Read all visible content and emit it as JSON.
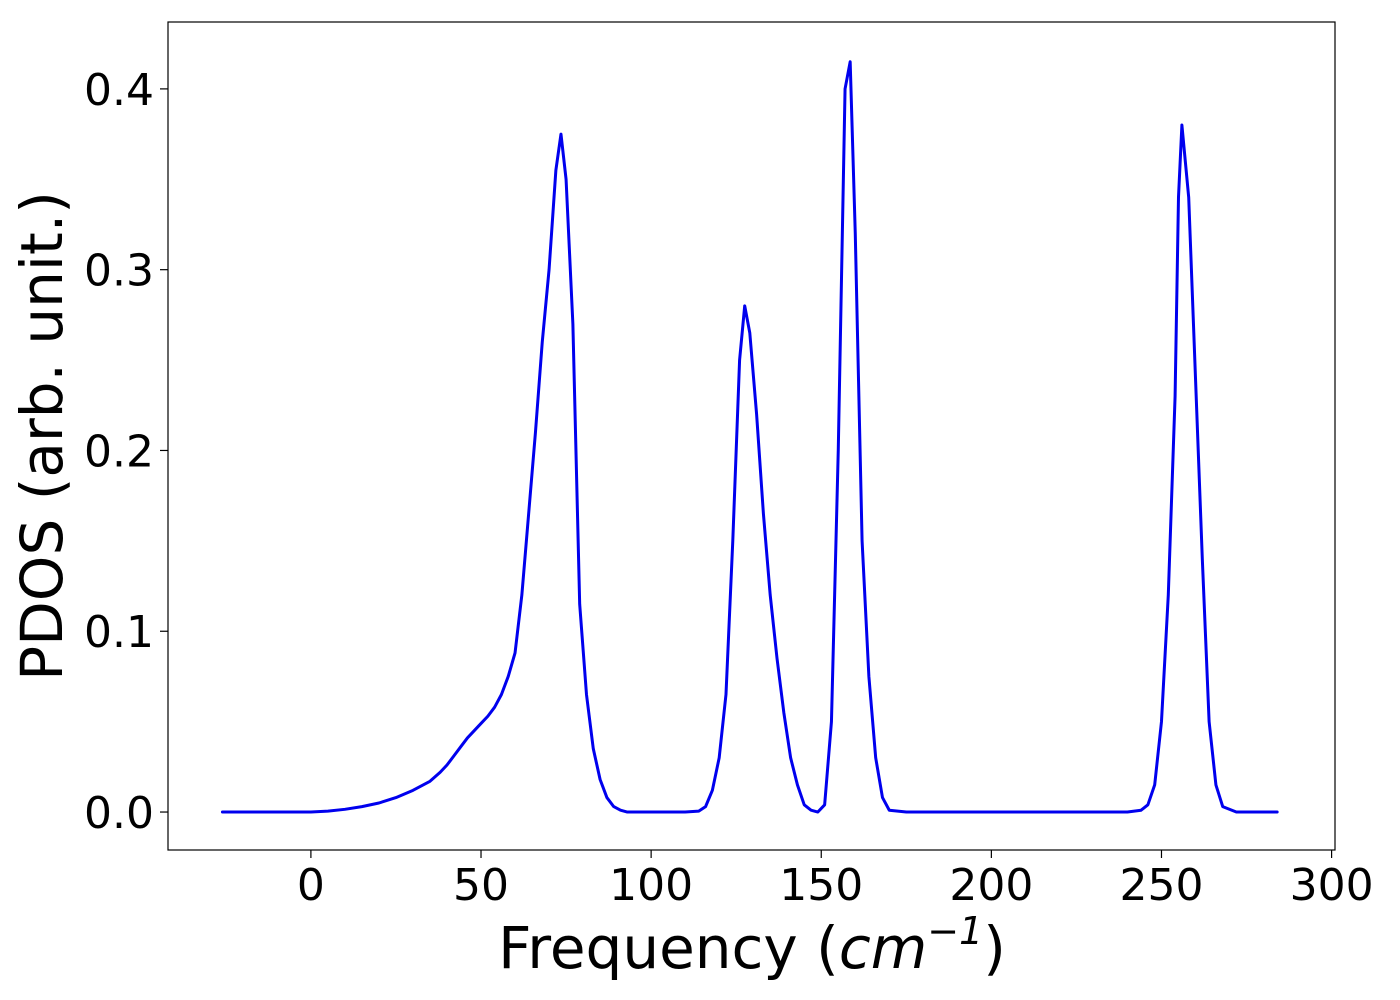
{
  "chart_data": {
    "type": "line",
    "title": "",
    "xlabel_prefix": "Frequency (",
    "xlabel_math": "cm",
    "xlabel_sup": "−1",
    "xlabel_suffix": ")",
    "ylabel": "PDOS (arb. unit.)",
    "xlim": [
      -42,
      301
    ],
    "ylim": [
      -0.021,
      0.437
    ],
    "xticks": [
      0,
      50,
      100,
      150,
      200,
      250,
      300
    ],
    "xtick_labels": [
      "0",
      "50",
      "100",
      "150",
      "200",
      "250",
      "300"
    ],
    "yticks": [
      0.0,
      0.1,
      0.2,
      0.3,
      0.4
    ],
    "ytick_labels": [
      "0.0",
      "0.1",
      "0.2",
      "0.3",
      "0.4"
    ],
    "grid": false,
    "legend": "none",
    "series": [
      {
        "color": "#0000ee",
        "x": [
          -26,
          -20,
          -10,
          0,
          5,
          10,
          15,
          20,
          25,
          30,
          35,
          38,
          40,
          42,
          44,
          46,
          48,
          50,
          52,
          54,
          56,
          58,
          60,
          62,
          64,
          66,
          68,
          70,
          72,
          73.5,
          75,
          77,
          79,
          81,
          83,
          85,
          87,
          89,
          91,
          93,
          95,
          100,
          105,
          110,
          114,
          116,
          118,
          120,
          122,
          124,
          126,
          127.5,
          129,
          131,
          133,
          135,
          137,
          139,
          141,
          143,
          145,
          147,
          149,
          151,
          153,
          155,
          157,
          158.5,
          160,
          162,
          164,
          166,
          168,
          170,
          175,
          200,
          225,
          240,
          244,
          246,
          248,
          250,
          252,
          254,
          255,
          256,
          258,
          260,
          262,
          264,
          266,
          268,
          272,
          284
        ],
        "y": [
          0.0,
          0.0,
          0.0,
          0.0,
          0.0005,
          0.0015,
          0.003,
          0.005,
          0.008,
          0.012,
          0.017,
          0.022,
          0.026,
          0.031,
          0.036,
          0.041,
          0.045,
          0.049,
          0.053,
          0.058,
          0.065,
          0.075,
          0.088,
          0.12,
          0.165,
          0.21,
          0.26,
          0.3,
          0.355,
          0.375,
          0.35,
          0.27,
          0.115,
          0.065,
          0.035,
          0.018,
          0.008,
          0.003,
          0.001,
          0.0,
          0.0,
          0.0,
          0.0,
          0.0,
          0.0005,
          0.003,
          0.012,
          0.03,
          0.065,
          0.15,
          0.25,
          0.28,
          0.265,
          0.22,
          0.165,
          0.12,
          0.085,
          0.055,
          0.03,
          0.015,
          0.004,
          0.001,
          0.0,
          0.004,
          0.05,
          0.2,
          0.4,
          0.415,
          0.32,
          0.15,
          0.075,
          0.03,
          0.008,
          0.001,
          0.0,
          0.0,
          0.0,
          0.0,
          0.001,
          0.004,
          0.015,
          0.05,
          0.12,
          0.23,
          0.34,
          0.38,
          0.34,
          0.24,
          0.14,
          0.05,
          0.015,
          0.003,
          0.0,
          0.0
        ]
      }
    ]
  }
}
